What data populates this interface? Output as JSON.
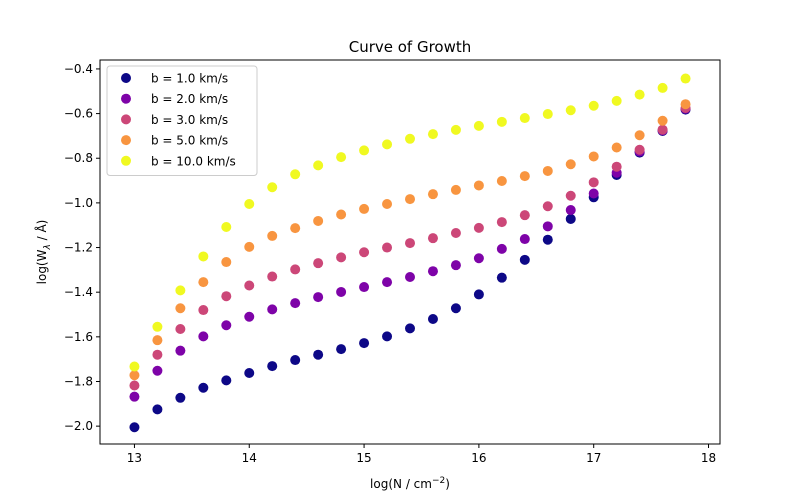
{
  "chart_data": {
    "type": "scatter",
    "title": "Curve of Growth",
    "xlabel": "log(N / cm",
    "xlabel_sup": "−2",
    "xlabel_end": ")",
    "ylabel": "log(W",
    "ylabel_sub": "λ",
    "ylabel_end": " / Å)",
    "xlim": [
      12.7,
      18.1
    ],
    "ylim": [
      -2.08,
      -0.36
    ],
    "xticks": [
      13,
      14,
      15,
      16,
      17,
      18
    ],
    "xtick_labels": [
      "13",
      "14",
      "15",
      "16",
      "17",
      "18"
    ],
    "yticks": [
      -2.0,
      -1.8,
      -1.6,
      -1.4,
      -1.2,
      -1.0,
      -0.8,
      -0.6,
      -0.4
    ],
    "ytick_labels": [
      "−2.0",
      "−1.8",
      "−1.6",
      "−1.4",
      "−1.2",
      "−1.0",
      "−0.8",
      "−0.6",
      "−0.4"
    ],
    "grid": false,
    "legend_position": "upper-left",
    "x": [
      13.0,
      13.2,
      13.4,
      13.6,
      13.8,
      14.0,
      14.2,
      14.4,
      14.6,
      14.8,
      15.0,
      15.2,
      15.4,
      15.6,
      15.8,
      16.0,
      16.2,
      16.4,
      16.6,
      16.8,
      17.0,
      17.2,
      17.4,
      17.6,
      17.8
    ],
    "series": [
      {
        "name": "b = 1.0 km/s",
        "color": "#0d0887",
        "values": [
          -2.005,
          -1.925,
          -1.873,
          -1.828,
          -1.795,
          -1.762,
          -1.731,
          -1.704,
          -1.68,
          -1.655,
          -1.628,
          -1.598,
          -1.562,
          -1.52,
          -1.472,
          -1.41,
          -1.335,
          -1.255,
          -1.165,
          -1.072,
          -0.975,
          -0.875,
          -0.775,
          -0.678,
          -0.582
        ]
      },
      {
        "name": "b = 2.0 km/s",
        "color": "#7e03a8",
        "values": [
          -1.868,
          -1.752,
          -1.662,
          -1.598,
          -1.548,
          -1.51,
          -1.477,
          -1.449,
          -1.422,
          -1.399,
          -1.377,
          -1.355,
          -1.332,
          -1.306,
          -1.279,
          -1.248,
          -1.206,
          -1.162,
          -1.105,
          -1.032,
          -0.958,
          -0.865,
          -0.77,
          -0.675,
          -0.578
        ]
      },
      {
        "name": "b = 3.0 km/s",
        "color": "#cc4778",
        "values": [
          -1.818,
          -1.68,
          -1.565,
          -1.48,
          -1.418,
          -1.37,
          -1.33,
          -1.298,
          -1.27,
          -1.244,
          -1.221,
          -1.2,
          -1.18,
          -1.158,
          -1.135,
          -1.112,
          -1.086,
          -1.055,
          -1.015,
          -0.968,
          -0.908,
          -0.838,
          -0.762,
          -0.672,
          -0.575
        ]
      },
      {
        "name": "b = 5.0 km/s",
        "color": "#f89540",
        "values": [
          -1.772,
          -1.615,
          -1.472,
          -1.355,
          -1.265,
          -1.197,
          -1.148,
          -1.113,
          -1.081,
          -1.052,
          -1.027,
          -1.005,
          -0.983,
          -0.961,
          -0.942,
          -0.922,
          -0.902,
          -0.88,
          -0.857,
          -0.827,
          -0.792,
          -0.752,
          -0.697,
          -0.632,
          -0.558
        ]
      },
      {
        "name": "b = 10.0 km/s",
        "color": "#f0f921",
        "values": [
          -1.733,
          -1.555,
          -1.392,
          -1.24,
          -1.108,
          -1.005,
          -0.93,
          -0.872,
          -0.832,
          -0.795,
          -0.765,
          -0.738,
          -0.713,
          -0.692,
          -0.673,
          -0.655,
          -0.637,
          -0.62,
          -0.602,
          -0.585,
          -0.565,
          -0.543,
          -0.515,
          -0.485,
          -0.443
        ]
      }
    ]
  }
}
